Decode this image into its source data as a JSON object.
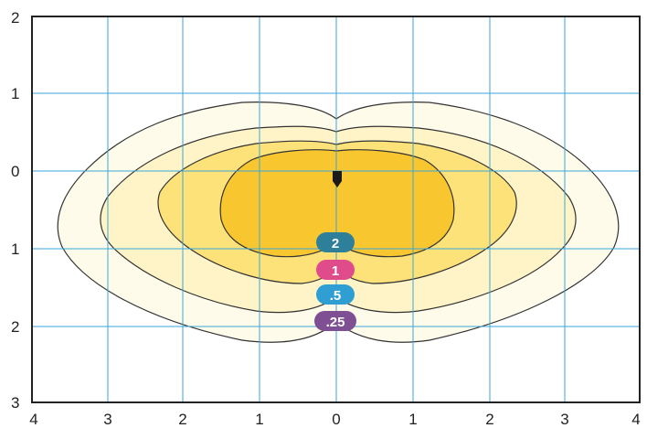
{
  "y_axis_labels": [
    "2",
    "1",
    "0",
    "1",
    "2",
    "3"
  ],
  "x_axis_labels": [
    "4",
    "3",
    "2",
    "1",
    "0",
    "1",
    "2",
    "3",
    "4"
  ],
  "contour_levels": [
    {
      "label": "2",
      "color": "#2e7f9a"
    },
    {
      "label": "1",
      "color": "#e04b8c"
    },
    {
      "label": ".5",
      "color": "#2f9fd3"
    },
    {
      "label": ".25",
      "color": "#7f4f94"
    }
  ],
  "colors": {
    "grid": "#3ba6d8",
    "frame": "#222222",
    "contour_line": "#333333",
    "fill_level_2": "#f8c72f",
    "fill_level_1": "#fde27a",
    "fill_level_05": "#fef4c8",
    "fill_level_025": "#fffbea"
  }
}
